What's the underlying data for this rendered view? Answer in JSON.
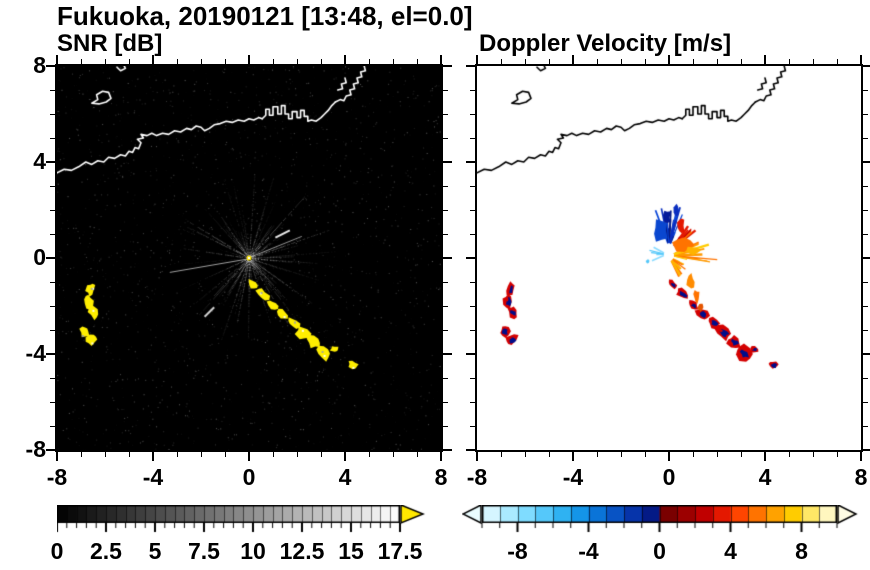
{
  "title": "Fukuoka, 20190121 [13:48, el=0.0]",
  "panels": {
    "snr": {
      "label": "SNR [dB]",
      "bg": "#000000",
      "coast_color": "#ffffff",
      "axis": {
        "xlim": [
          -8,
          8
        ],
        "ylim": [
          -8,
          8
        ],
        "major": [
          -8,
          -4,
          0,
          4,
          8
        ],
        "major_labels": [
          "-8",
          "-4",
          "0",
          "4",
          "8"
        ],
        "minor_step": 1,
        "show_y_labels": true
      },
      "colorbar": {
        "min": 0,
        "max": 17.5,
        "minor_step": 0.5,
        "major_step": 2.5,
        "label_values": [
          0,
          2.5,
          5,
          7.5,
          10,
          12.5,
          15,
          17.5
        ],
        "tick_labels": [
          "0",
          "2.5",
          "5",
          "7.5",
          "10",
          "12.5",
          "15",
          "17.5"
        ],
        "type": "grayscale",
        "arrow_color": "#ffe800"
      }
    },
    "vel": {
      "label": "Doppler Velocity [m/s]",
      "bg": "#ffffff",
      "coast_color": "#000000",
      "axis": {
        "xlim": [
          -8,
          8
        ],
        "ylim": [
          -8,
          8
        ],
        "major": [
          -8,
          -4,
          0,
          4,
          8
        ],
        "major_labels": [
          "-8",
          "-4",
          "0",
          "4",
          "8"
        ],
        "minor_step": 1,
        "show_y_labels": false
      },
      "colorbar": {
        "min": -10,
        "max": 10,
        "minor_step": 1,
        "major_step": 4,
        "label_values": [
          -8,
          -4,
          0,
          4,
          8
        ],
        "tick_labels": [
          "-8",
          "-4",
          "0",
          "4",
          "8"
        ],
        "colors": [
          "#d5f5ff",
          "#aaeaff",
          "#7fdcff",
          "#55c8fa",
          "#2fb2f2",
          "#1495e8",
          "#0a74d8",
          "#0853c4",
          "#0634aa",
          "#041a86",
          "#7a0000",
          "#9c0000",
          "#c00000",
          "#e41800",
          "#ff4500",
          "#ff7300",
          "#ffa200",
          "#ffcc00",
          "#ffe766",
          "#fff7bf"
        ],
        "left_arrow_color": "#eafdff",
        "right_arrow_color": "#fffce3"
      }
    }
  },
  "chart_data": {
    "type": "heatmap",
    "subtype": "dual-panel radar PPI scan",
    "title": "Fukuoka, 20190121 [13:48, el=0.0]",
    "panel_info": [
      {
        "title": "SNR [dB]",
        "variable": "signal-to-noise ratio",
        "units": "dB",
        "background": "black",
        "colorscale": {
          "min": 0,
          "max": 17.5,
          "scheme": "grayscale black to white, yellow overflow arrow",
          "ticks": [
            0,
            2.5,
            5,
            7.5,
            10,
            12.5,
            15,
            17.5
          ]
        }
      },
      {
        "title": "Doppler Velocity [m/s]",
        "variable": "radial velocity",
        "units": "m/s",
        "background": "white",
        "colorscale": {
          "min": -10,
          "max": 10,
          "scheme": "pale cyan - blue - navy (negative), dark red - orange - pale yellow (positive)",
          "ticks": [
            -8,
            -4,
            0,
            4,
            8
          ]
        }
      }
    ],
    "axes": {
      "xlim": [
        -8,
        8
      ],
      "ylim": [
        -8,
        8
      ],
      "major_ticks": [
        -8,
        -4,
        0,
        4,
        8
      ],
      "minor_tick_step": 1,
      "grid": false
    },
    "radar_site": {
      "x": 0,
      "y": 0
    },
    "noise_seed": 7,
    "coastline": [
      [
        [
          -8,
          3.55
        ],
        [
          -7.7,
          3.7
        ],
        [
          -7.4,
          3.65
        ],
        [
          -7.1,
          3.8
        ],
        [
          -6.8,
          4.0
        ],
        [
          -6.55,
          3.9
        ],
        [
          -6.3,
          4.05
        ],
        [
          -6.05,
          4.0
        ],
        [
          -5.85,
          4.2
        ],
        [
          -5.6,
          4.15
        ],
        [
          -5.35,
          4.3
        ],
        [
          -5.15,
          4.25
        ],
        [
          -5.0,
          4.45
        ],
        [
          -4.85,
          4.4
        ],
        [
          -4.75,
          4.6
        ],
        [
          -4.6,
          4.55
        ],
        [
          -4.5,
          4.8
        ],
        [
          -4.65,
          4.95
        ],
        [
          -4.4,
          5.0
        ],
        [
          -4.5,
          5.15
        ],
        [
          -4.25,
          5.1
        ],
        [
          -4.05,
          5.2
        ],
        [
          -3.85,
          5.1
        ],
        [
          -3.6,
          5.2
        ],
        [
          -3.35,
          5.15
        ],
        [
          -3.1,
          5.3
        ],
        [
          -2.85,
          5.25
        ],
        [
          -2.6,
          5.4
        ],
        [
          -2.4,
          5.35
        ],
        [
          -2.2,
          5.5
        ],
        [
          -2.0,
          5.45
        ],
        [
          -1.85,
          5.3
        ],
        [
          -1.65,
          5.4
        ],
        [
          -1.45,
          5.55
        ],
        [
          -1.2,
          5.6
        ],
        [
          -0.95,
          5.7
        ],
        [
          -0.7,
          5.65
        ],
        [
          -0.45,
          5.75
        ],
        [
          -0.2,
          5.7
        ],
        [
          0.0,
          5.8
        ],
        [
          0.2,
          5.75
        ],
        [
          0.4,
          5.85
        ],
        [
          0.55,
          5.8
        ]
      ],
      [
        [
          0.55,
          5.8
        ],
        [
          0.7,
          5.95
        ],
        [
          0.7,
          6.2
        ],
        [
          0.85,
          6.2
        ],
        [
          0.85,
          5.95
        ],
        [
          1.0,
          5.95
        ],
        [
          1.0,
          6.3
        ],
        [
          1.2,
          6.3
        ],
        [
          1.2,
          6.0
        ],
        [
          1.35,
          6.0
        ],
        [
          1.35,
          6.35
        ],
        [
          1.5,
          6.35
        ],
        [
          1.5,
          6.0
        ],
        [
          1.65,
          6.0
        ],
        [
          1.65,
          5.8
        ],
        [
          1.8,
          5.8
        ],
        [
          1.8,
          6.1
        ],
        [
          2.0,
          6.1
        ],
        [
          2.0,
          5.85
        ],
        [
          2.15,
          5.85
        ],
        [
          2.15,
          6.15
        ],
        [
          2.3,
          6.15
        ],
        [
          2.3,
          5.9
        ],
        [
          2.45,
          5.9
        ],
        [
          2.45,
          5.7
        ],
        [
          2.6,
          5.75
        ],
        [
          2.8,
          5.7
        ],
        [
          3.0,
          5.85
        ],
        [
          3.15,
          6.0
        ],
        [
          3.3,
          6.15
        ],
        [
          3.45,
          6.35
        ],
        [
          3.6,
          6.5
        ]
      ],
      [
        [
          3.6,
          6.5
        ],
        [
          3.8,
          6.6
        ],
        [
          3.95,
          6.55
        ],
        [
          4.05,
          6.75
        ],
        [
          4.25,
          6.8
        ],
        [
          4.2,
          7.0
        ],
        [
          4.4,
          7.05
        ],
        [
          4.35,
          7.25
        ],
        [
          4.55,
          7.3
        ],
        [
          4.5,
          7.5
        ],
        [
          4.7,
          7.55
        ],
        [
          4.65,
          7.75
        ],
        [
          4.85,
          7.8
        ],
        [
          4.8,
          8.0
        ]
      ],
      [
        [
          3.7,
          7.0
        ],
        [
          3.9,
          7.05
        ],
        [
          3.85,
          7.25
        ],
        [
          4.05,
          7.3
        ],
        [
          4.0,
          7.5
        ]
      ],
      [
        [
          -6.55,
          6.45
        ],
        [
          -6.3,
          6.6
        ],
        [
          -6.35,
          6.8
        ],
        [
          -6.1,
          6.95
        ],
        [
          -5.85,
          6.9
        ],
        [
          -5.75,
          6.65
        ],
        [
          -5.95,
          6.5
        ],
        [
          -6.25,
          6.42
        ],
        [
          -6.55,
          6.45
        ]
      ],
      [
        [
          -5.5,
          7.95
        ],
        [
          -5.35,
          7.8
        ],
        [
          -5.15,
          7.9
        ],
        [
          -5.2,
          8.0
        ]
      ]
    ],
    "echo_cells": [
      {
        "x": -6.6,
        "y": -1.3,
        "rx": 0.16,
        "ry": 0.3,
        "rot": -15
      },
      {
        "x": -6.7,
        "y": -1.8,
        "rx": 0.2,
        "ry": 0.32,
        "rot": 5
      },
      {
        "x": -6.5,
        "y": -2.25,
        "rx": 0.18,
        "ry": 0.28,
        "rot": 30
      },
      {
        "x": -6.85,
        "y": -3.05,
        "rx": 0.2,
        "ry": 0.24,
        "rot": 0
      },
      {
        "x": -6.55,
        "y": -3.4,
        "rx": 0.26,
        "ry": 0.2,
        "rot": 35
      },
      {
        "x": 0.15,
        "y": -1.1,
        "rx": 0.22,
        "ry": 0.14,
        "rot": -40
      },
      {
        "x": 0.55,
        "y": -1.5,
        "rx": 0.3,
        "ry": 0.18,
        "rot": -40
      },
      {
        "x": 1.0,
        "y": -1.95,
        "rx": 0.24,
        "ry": 0.15,
        "rot": -40
      },
      {
        "x": 1.4,
        "y": -2.35,
        "rx": 0.3,
        "ry": 0.2,
        "rot": -40
      },
      {
        "x": 1.85,
        "y": -2.7,
        "rx": 0.26,
        "ry": 0.18,
        "rot": -35
      },
      {
        "x": 2.25,
        "y": -3.1,
        "rx": 0.34,
        "ry": 0.24,
        "rot": -40
      },
      {
        "x": 2.7,
        "y": -3.5,
        "rx": 0.3,
        "ry": 0.22,
        "rot": -40
      },
      {
        "x": 3.1,
        "y": -3.95,
        "rx": 0.36,
        "ry": 0.28,
        "rot": -40
      },
      {
        "x": 3.55,
        "y": -3.8,
        "rx": 0.18,
        "ry": 0.13,
        "rot": 0
      },
      {
        "x": 4.35,
        "y": -4.45,
        "rx": 0.22,
        "ry": 0.15,
        "rot": -25
      }
    ],
    "snr_clutter": {
      "ray_count": 115,
      "noise_dots": 2400,
      "cell_color": "#ffee00",
      "blocked_sectors": [
        {
          "a1": 186,
          "a2": 205,
          "r": 3.6
        },
        {
          "a1": 155,
          "a2": 163,
          "r": 2.4
        }
      ],
      "bright_streaks": [
        {
          "x1": 1.1,
          "y1": 0.85,
          "x2": 1.7,
          "y2": 1.15,
          "w": 2,
          "c": "#e8e8e8"
        },
        {
          "x1": -1.85,
          "y1": -2.45,
          "x2": -1.45,
          "y2": -2.05,
          "w": 2,
          "c": "#d0d0d0"
        },
        {
          "x1": -0.1,
          "y1": -0.05,
          "x2": -3.3,
          "y2": -0.6,
          "w": 1,
          "c": "rgba(215,215,215,0.75)"
        },
        {
          "x1": 0.1,
          "y1": 0.05,
          "x2": 2.2,
          "y2": 0.9,
          "w": 1,
          "c": "rgba(210,210,210,0.7)"
        }
      ]
    },
    "velocity_echo": {
      "cell_outer_color": "#d40000",
      "cell_core_color": "#000d8a",
      "elements": [
        {
          "t": "fan",
          "x": 0.0,
          "y": 0.5,
          "a1": 62,
          "a2": 112,
          "n": 16,
          "lmin": 0.3,
          "lmax": 1.7,
          "colors": [
            "#0a2ec0",
            "#0845d8",
            "#041a86"
          ]
        },
        {
          "t": "fan",
          "x": 0.15,
          "y": 0.4,
          "a1": 28,
          "a2": 60,
          "n": 10,
          "lmin": 0.3,
          "lmax": 1.9,
          "colors": [
            "#e41800",
            "#ff7300",
            "#c00000"
          ]
        },
        {
          "t": "fan",
          "x": 0.1,
          "y": 0.1,
          "a1": -20,
          "a2": 28,
          "n": 14,
          "lmin": 0.4,
          "lmax": 2.0,
          "colors": [
            "#ff9a00",
            "#ffcc00",
            "#ff7300"
          ]
        },
        {
          "t": "fan",
          "x": 0.05,
          "y": 0.0,
          "a1": -65,
          "a2": -20,
          "n": 8,
          "lmin": 0.3,
          "lmax": 1.1,
          "colors": [
            "#ff7300",
            "#ffb300"
          ]
        },
        {
          "t": "fan",
          "x": -0.1,
          "y": 0.15,
          "a1": 150,
          "a2": 205,
          "n": 6,
          "lmin": 0.25,
          "lmax": 0.8,
          "colors": [
            "#55c8fa",
            "#8adcff"
          ]
        },
        {
          "t": "blob",
          "x": -0.35,
          "y": 1.15,
          "rx": 0.3,
          "ry": 0.42,
          "c": "#0a47d0"
        },
        {
          "t": "blob",
          "x": -0.1,
          "y": 1.7,
          "rx": 0.18,
          "ry": 0.3,
          "c": "#041a9a"
        },
        {
          "t": "blob",
          "x": 0.3,
          "y": 2.0,
          "rx": 0.1,
          "ry": 0.25,
          "c": "#0a2ec0"
        },
        {
          "t": "blob",
          "x": 0.55,
          "y": 0.55,
          "rx": 0.4,
          "ry": 0.26,
          "c": "#ff7300"
        },
        {
          "t": "blob",
          "x": 0.95,
          "y": 0.3,
          "rx": 0.3,
          "ry": 0.17,
          "c": "#ffb300"
        },
        {
          "t": "blob",
          "x": 0.5,
          "y": 1.35,
          "rx": 0.14,
          "ry": 0.3,
          "c": "#e41800"
        },
        {
          "t": "blob",
          "x": 0.9,
          "y": -1.0,
          "rx": 0.16,
          "ry": 0.3,
          "c": "#ff8c00"
        },
        {
          "t": "blob",
          "x": 1.15,
          "y": -1.6,
          "rx": 0.13,
          "ry": 0.26,
          "c": "#ff7300"
        },
        {
          "t": "blob",
          "x": 1.3,
          "y": -2.05,
          "rx": 0.11,
          "ry": 0.18,
          "c": "#e45500"
        },
        {
          "t": "blob",
          "x": -0.9,
          "y": -0.15,
          "rx": 0.08,
          "ry": 0.08,
          "c": "#55c8fa"
        }
      ]
    }
  }
}
